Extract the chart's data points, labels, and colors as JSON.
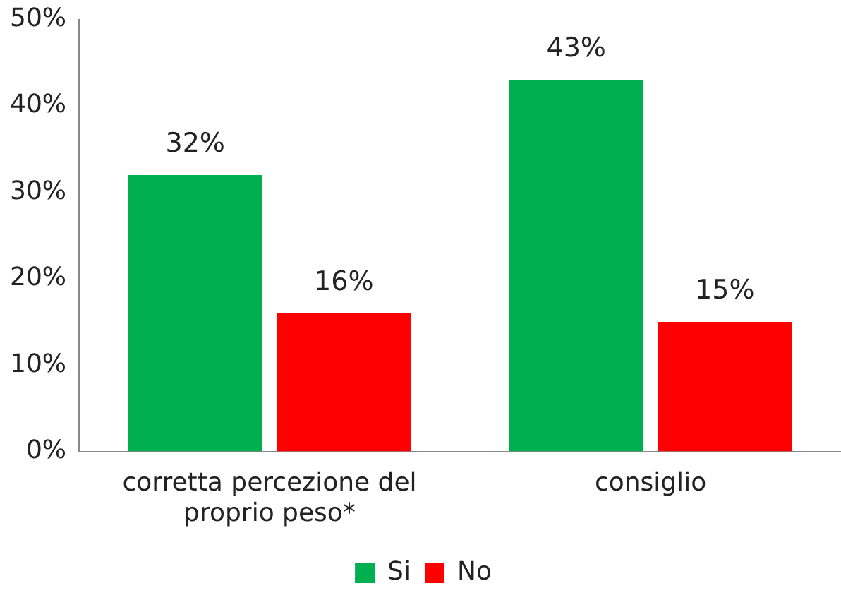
{
  "chart_data": {
    "type": "bar",
    "categories": [
      "corretta percezione del proprio peso*",
      "consiglio"
    ],
    "series": [
      {
        "name": "Si",
        "color": "#00b050",
        "values": [
          32,
          43
        ],
        "value_labels": [
          "32%",
          "43%"
        ]
      },
      {
        "name": "No",
        "color": "#ff0000",
        "values": [
          16,
          15
        ],
        "value_labels": [
          "16%",
          "15%"
        ]
      }
    ],
    "ylim": [
      0,
      50
    ],
    "yticks": [
      {
        "value": 0,
        "label": "0%"
      },
      {
        "value": 10,
        "label": "10%"
      },
      {
        "value": 20,
        "label": "20%"
      },
      {
        "value": 30,
        "label": "30%"
      },
      {
        "value": 40,
        "label": "40%"
      },
      {
        "value": 50,
        "label": "50%"
      }
    ],
    "grid": false,
    "legend": "bottom"
  }
}
